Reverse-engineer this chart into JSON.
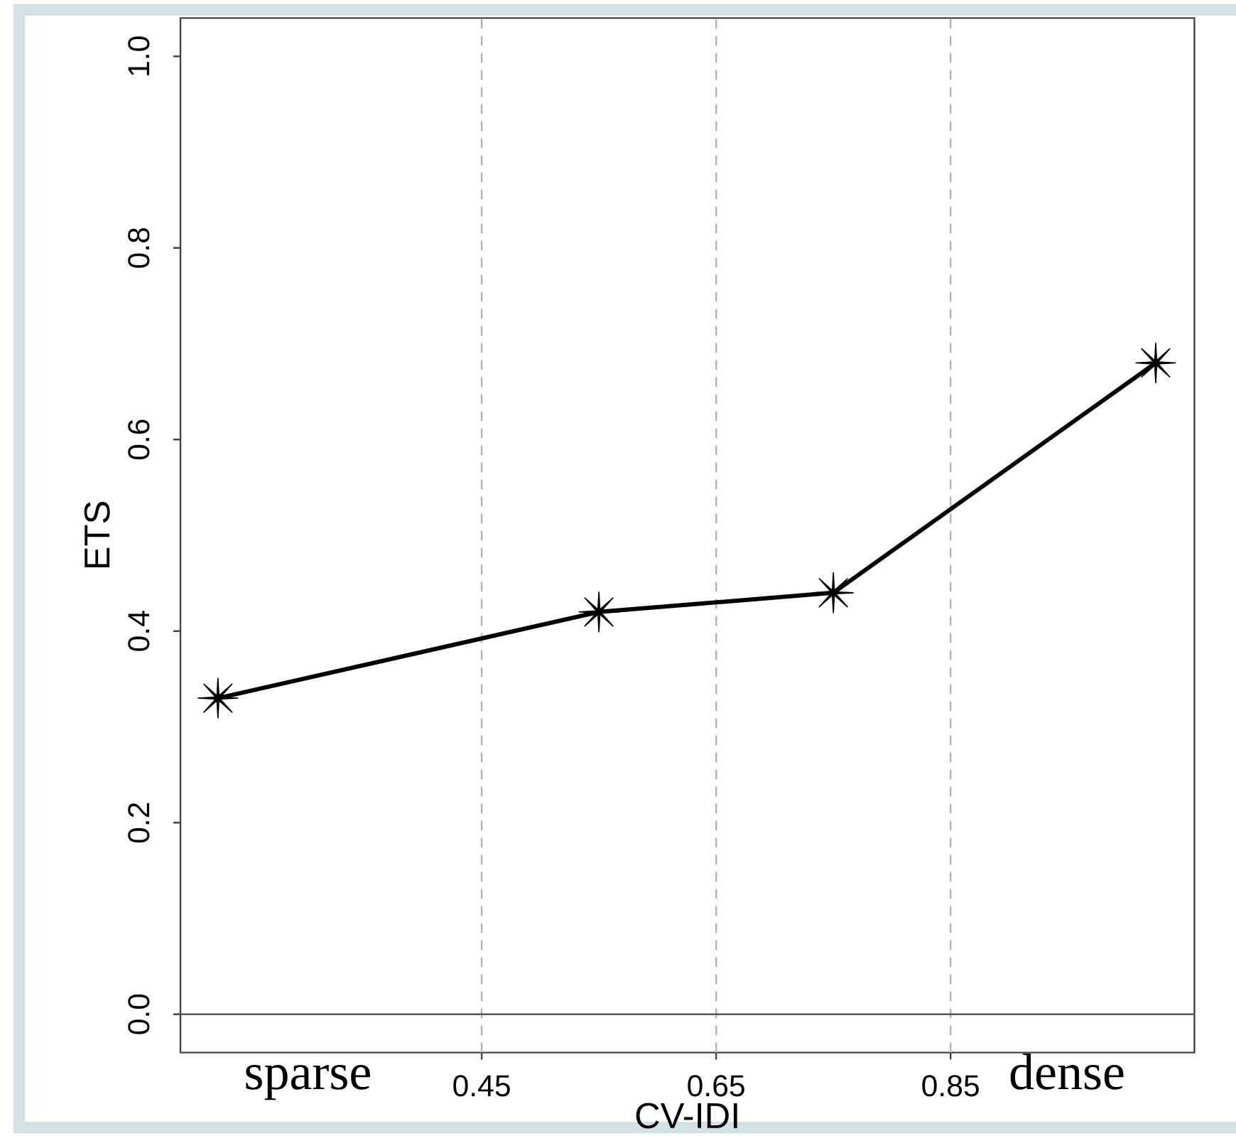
{
  "chart_data": {
    "type": "line",
    "xlabel": "CV-IDI",
    "ylabel": "ETS",
    "annotations": [
      "sparse",
      "dense"
    ],
    "x": [
      0.225,
      0.55,
      0.75,
      1.025
    ],
    "values": [
      0.33,
      0.42,
      0.44,
      0.68
    ],
    "color": "#000000",
    "marker": "star",
    "xlim": [
      0.193,
      1.058
    ],
    "ylim": [
      -0.04,
      1.04
    ],
    "xticks": [
      0.45,
      0.65,
      0.85
    ],
    "yticks": [
      {
        "value": 0,
        "label": "0.0"
      },
      0.2,
      0.4,
      0.6,
      0.8,
      {
        "value": 1,
        "label": "1.0"
      }
    ],
    "ref_lines": [
      {
        "axis": "x",
        "value": 0.45,
        "line_style": "dashed",
        "color": "#b4b4b4"
      },
      {
        "axis": "x",
        "value": 0.65,
        "line_style": "dashed",
        "color": "#b4b4b4"
      },
      {
        "axis": "x",
        "value": 0.85,
        "line_style": "dashed",
        "color": "#b4b4b4"
      },
      {
        "axis": "y",
        "value": 0,
        "line_style": "solid",
        "color": "#555555"
      }
    ]
  }
}
